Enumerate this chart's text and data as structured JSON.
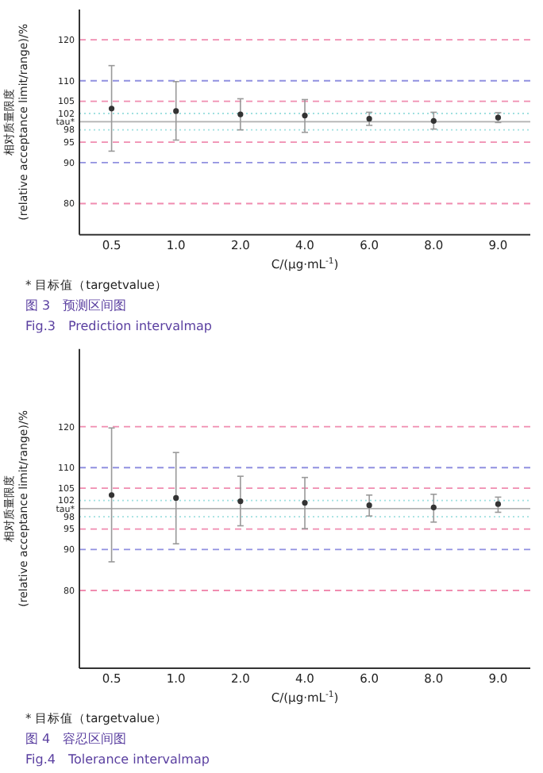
{
  "chart_data": [
    {
      "type": "scatter",
      "title": "图 3　预测区间图",
      "subtitle": "Fig.3　Prediction intervalmap",
      "xlabel": "C/(μg·mL$^{-1}$)",
      "ylabel": "相对质量限度\n(relative acceptance limit/range)/%",
      "annotations": [
        "* 目标值（targetvalue）"
      ],
      "categories": [
        "0.5",
        "1.0",
        "2.0",
        "4.0",
        "6.0",
        "8.0",
        "9.0"
      ],
      "series": [
        {
          "color": "#333333",
          "values": [
            103.2,
            102.6,
            101.8,
            101.5,
            100.7,
            100.2,
            101.0
          ],
          "errors": [
            [
              92.8,
              113.7
            ],
            [
              95.5,
              109.8
            ],
            [
              98.0,
              105.6
            ],
            [
              97.4,
              105.4
            ],
            [
              99.1,
              102.3
            ],
            [
              98.2,
              102.3
            ],
            [
              99.8,
              102.2
            ]
          ]
        }
      ],
      "ylim": [
        72.4,
        127.4
      ],
      "yticks": [
        80,
        90,
        95,
        98,
        {
          "value": 100,
          "label": "tau*"
        },
        102,
        105,
        110,
        120
      ],
      "ref_lines": [
        {
          "axis": "y",
          "value": 120,
          "color": "#f08cb0",
          "line_style": "dashed"
        },
        {
          "axis": "y",
          "value": 110,
          "color": "#9090e0",
          "line_style": "dashed"
        },
        {
          "axis": "y",
          "value": 105,
          "color": "#f08cb0",
          "line_style": "dashed"
        },
        {
          "axis": "y",
          "value": 102,
          "color": "#a0e0e0",
          "line_style": "dotted"
        },
        {
          "axis": "y",
          "value": 100,
          "color": "#b0b0b0",
          "line_style": "solid"
        },
        {
          "axis": "y",
          "value": 98,
          "color": "#a0e0e0",
          "line_style": "dotted"
        },
        {
          "axis": "y",
          "value": 95,
          "color": "#f08cb0",
          "line_style": "dashed"
        },
        {
          "axis": "y",
          "value": 90,
          "color": "#9090e0",
          "line_style": "dashed"
        },
        {
          "axis": "y",
          "value": 80,
          "color": "#f08cb0",
          "line_style": "dashed"
        }
      ],
      "marker": "circle",
      "grid": false
    },
    {
      "type": "scatter",
      "title": "图 4　容忍区间图",
      "subtitle": "Fig.4　Tolerance intervalmap",
      "xlabel": "C/(μg·mL$^{-1}$)",
      "ylabel": "相对质量限度\n(relative acceptance limit/range)/%",
      "annotations": [
        "* 目标值（targetvalue）"
      ],
      "categories": [
        "0.5",
        "1.0",
        "2.0",
        "4.0",
        "6.0",
        "8.0",
        "9.0"
      ],
      "series": [
        {
          "color": "#333333",
          "values": [
            103.3,
            102.6,
            101.8,
            101.4,
            100.8,
            100.3,
            101.1
          ],
          "errors": [
            [
              87.0,
              119.7
            ],
            [
              91.4,
              113.7
            ],
            [
              95.8,
              107.9
            ],
            [
              95.1,
              107.6
            ],
            [
              98.2,
              103.3
            ],
            [
              96.7,
              103.5
            ],
            [
              99.1,
              102.8
            ]
          ]
        }
      ],
      "ylim": [
        61,
        139
      ],
      "yticks": [
        80,
        90,
        95,
        98,
        {
          "value": 100,
          "label": "tau*"
        },
        102,
        105,
        110,
        120
      ],
      "ref_lines": [
        {
          "axis": "y",
          "value": 120,
          "color": "#f08cb0",
          "line_style": "dashed"
        },
        {
          "axis": "y",
          "value": 110,
          "color": "#9090e0",
          "line_style": "dashed"
        },
        {
          "axis": "y",
          "value": 105,
          "color": "#f08cb0",
          "line_style": "dashed"
        },
        {
          "axis": "y",
          "value": 102,
          "color": "#a0e0e0",
          "line_style": "dotted"
        },
        {
          "axis": "y",
          "value": 100,
          "color": "#b0b0b0",
          "line_style": "solid"
        },
        {
          "axis": "y",
          "value": 98,
          "color": "#a0e0e0",
          "line_style": "dotted"
        },
        {
          "axis": "y",
          "value": 95,
          "color": "#f08cb0",
          "line_style": "dashed"
        },
        {
          "axis": "y",
          "value": 90,
          "color": "#9090e0",
          "line_style": "dashed"
        },
        {
          "axis": "y",
          "value": 80,
          "color": "#f08cb0",
          "line_style": "dashed"
        }
      ],
      "marker": "circle",
      "grid": false
    }
  ]
}
